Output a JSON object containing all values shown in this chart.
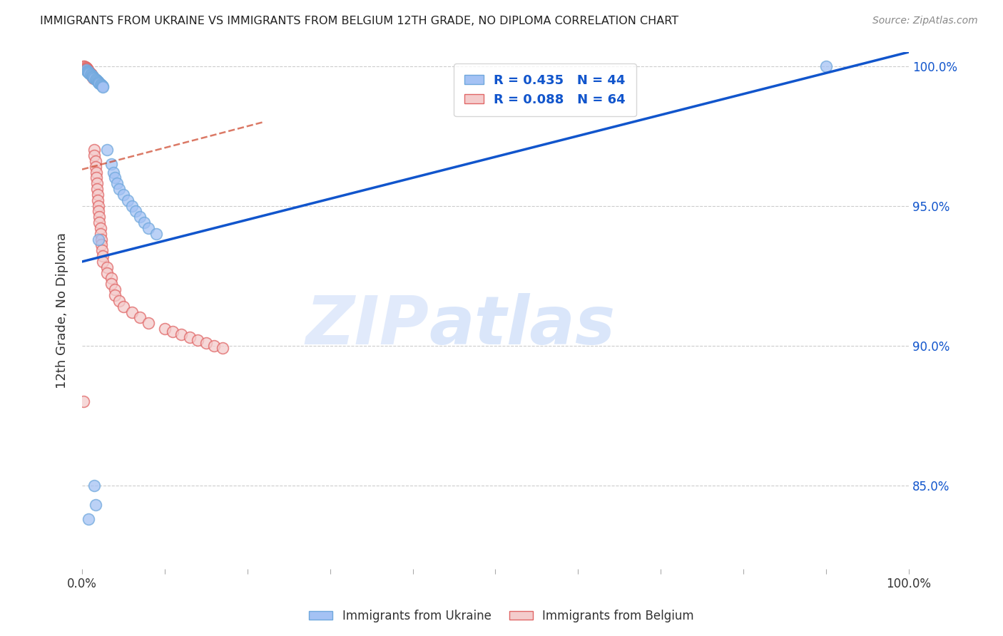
{
  "title": "IMMIGRANTS FROM UKRAINE VS IMMIGRANTS FROM BELGIUM 12TH GRADE, NO DIPLOMA CORRELATION CHART",
  "source": "Source: ZipAtlas.com",
  "ylabel_text": "12th Grade, No Diploma",
  "ukraine_R": "0.435",
  "ukraine_N": "44",
  "belgium_R": "0.088",
  "belgium_N": "64",
  "ukraine_color": "#a4c2f4",
  "ukraine_edge_color": "#6fa8dc",
  "belgium_color": "#f4cccc",
  "belgium_edge_color": "#e06666",
  "ukraine_line_color": "#1155cc",
  "belgium_line_color": "#cc4125",
  "xlim": [
    0.0,
    1.0
  ],
  "ylim": [
    0.82,
    1.005
  ],
  "y_tick_vals": [
    0.85,
    0.9,
    0.95,
    1.0
  ],
  "y_tick_labels": [
    "85.0%",
    "90.0%",
    "95.0%",
    "100.0%"
  ],
  "x_tick_vals": [
    0.0,
    0.1,
    0.2,
    0.3,
    0.4,
    0.5,
    0.6,
    0.7,
    0.8,
    0.9,
    1.0
  ],
  "ukraine_line_x": [
    0.0,
    1.0
  ],
  "ukraine_line_y": [
    0.93,
    1.005
  ],
  "belgium_line_x": [
    0.0,
    0.22
  ],
  "belgium_line_y": [
    0.963,
    0.98
  ],
  "ukraine_scatter": [
    [
      0.005,
      0.9985
    ],
    [
      0.006,
      0.9982
    ],
    [
      0.007,
      0.998
    ],
    [
      0.008,
      0.9978
    ],
    [
      0.008,
      0.9975
    ],
    [
      0.009,
      0.9973
    ],
    [
      0.01,
      0.997
    ],
    [
      0.011,
      0.9968
    ],
    [
      0.012,
      0.9965
    ],
    [
      0.013,
      0.9963
    ],
    [
      0.013,
      0.996
    ],
    [
      0.014,
      0.9958
    ],
    [
      0.015,
      0.9955
    ],
    [
      0.016,
      0.9953
    ],
    [
      0.017,
      0.995
    ],
    [
      0.018,
      0.9948
    ],
    [
      0.019,
      0.9945
    ],
    [
      0.02,
      0.9942
    ],
    [
      0.02,
      0.994
    ],
    [
      0.021,
      0.9937
    ],
    [
      0.022,
      0.9935
    ],
    [
      0.023,
      0.9932
    ],
    [
      0.024,
      0.993
    ],
    [
      0.025,
      0.9927
    ],
    [
      0.025,
      0.9925
    ],
    [
      0.03,
      0.97
    ],
    [
      0.035,
      0.965
    ],
    [
      0.038,
      0.962
    ],
    [
      0.04,
      0.96
    ],
    [
      0.042,
      0.958
    ],
    [
      0.045,
      0.956
    ],
    [
      0.05,
      0.954
    ],
    [
      0.055,
      0.952
    ],
    [
      0.06,
      0.95
    ],
    [
      0.065,
      0.948
    ],
    [
      0.07,
      0.946
    ],
    [
      0.075,
      0.944
    ],
    [
      0.08,
      0.942
    ],
    [
      0.09,
      0.94
    ],
    [
      0.02,
      0.938
    ],
    [
      0.015,
      0.85
    ],
    [
      0.016,
      0.843
    ],
    [
      0.008,
      0.838
    ],
    [
      0.9,
      1.0
    ]
  ],
  "belgium_scatter": [
    [
      0.002,
      1.0
    ],
    [
      0.003,
      0.9998
    ],
    [
      0.004,
      0.9996
    ],
    [
      0.005,
      0.9994
    ],
    [
      0.005,
      0.9992
    ],
    [
      0.006,
      0.999
    ],
    [
      0.006,
      0.9988
    ],
    [
      0.007,
      0.9986
    ],
    [
      0.007,
      0.9984
    ],
    [
      0.008,
      0.9982
    ],
    [
      0.008,
      0.998
    ],
    [
      0.009,
      0.9978
    ],
    [
      0.009,
      0.9976
    ],
    [
      0.01,
      0.9974
    ],
    [
      0.01,
      0.9972
    ],
    [
      0.011,
      0.997
    ],
    [
      0.011,
      0.9968
    ],
    [
      0.012,
      0.9966
    ],
    [
      0.012,
      0.9964
    ],
    [
      0.013,
      0.9962
    ],
    [
      0.013,
      0.996
    ],
    [
      0.014,
      0.9958
    ],
    [
      0.014,
      0.9956
    ],
    [
      0.015,
      0.97
    ],
    [
      0.015,
      0.968
    ],
    [
      0.016,
      0.966
    ],
    [
      0.016,
      0.964
    ],
    [
      0.017,
      0.962
    ],
    [
      0.017,
      0.96
    ],
    [
      0.018,
      0.958
    ],
    [
      0.018,
      0.956
    ],
    [
      0.019,
      0.954
    ],
    [
      0.019,
      0.952
    ],
    [
      0.02,
      0.95
    ],
    [
      0.02,
      0.948
    ],
    [
      0.021,
      0.946
    ],
    [
      0.021,
      0.944
    ],
    [
      0.022,
      0.942
    ],
    [
      0.022,
      0.94
    ],
    [
      0.023,
      0.938
    ],
    [
      0.023,
      0.936
    ],
    [
      0.024,
      0.934
    ],
    [
      0.025,
      0.932
    ],
    [
      0.025,
      0.93
    ],
    [
      0.03,
      0.928
    ],
    [
      0.03,
      0.926
    ],
    [
      0.035,
      0.924
    ],
    [
      0.035,
      0.922
    ],
    [
      0.04,
      0.92
    ],
    [
      0.04,
      0.918
    ],
    [
      0.045,
      0.916
    ],
    [
      0.05,
      0.914
    ],
    [
      0.06,
      0.912
    ],
    [
      0.07,
      0.91
    ],
    [
      0.08,
      0.908
    ],
    [
      0.002,
      0.88
    ],
    [
      0.1,
      0.906
    ],
    [
      0.11,
      0.905
    ],
    [
      0.12,
      0.904
    ],
    [
      0.13,
      0.903
    ],
    [
      0.14,
      0.902
    ],
    [
      0.15,
      0.901
    ],
    [
      0.16,
      0.9
    ],
    [
      0.17,
      0.899
    ]
  ],
  "watermark_zip": "ZIP",
  "watermark_atlas": "atlas",
  "background_color": "#ffffff",
  "grid_color": "#cccccc"
}
